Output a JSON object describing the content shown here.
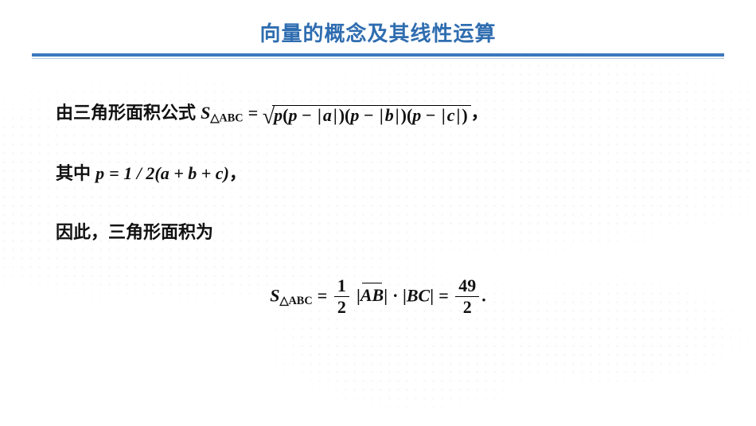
{
  "colors": {
    "title": "#2f6db0",
    "underline": "#3b78bd",
    "underline_thin": "#b8c6d8",
    "body": "#111111"
  },
  "title": "向量的概念及其线性运算",
  "line1_prefix": "由三角形面积公式 ",
  "heron": {
    "S": "S",
    "sub": "△ABC",
    "eq": " = ",
    "p": "p",
    "a": "a",
    "b": "b",
    "c": "c",
    "comma": "，"
  },
  "line2_prefix": "其中  ",
  "pdef": {
    "lhs": "p",
    "eq": " = ",
    "rhs": "1 / 2(a + b + c)",
    "comma": "，"
  },
  "line3": "因此，三角形面积为",
  "final": {
    "S": "S",
    "sub": "△ABC",
    "eq": " = ",
    "half_num": "1",
    "half_den": "2",
    "AB": "AB",
    "dot": " · ",
    "BC": "BC",
    "eq2": " = ",
    "res_num": "49",
    "res_den": "2",
    "period": "."
  }
}
